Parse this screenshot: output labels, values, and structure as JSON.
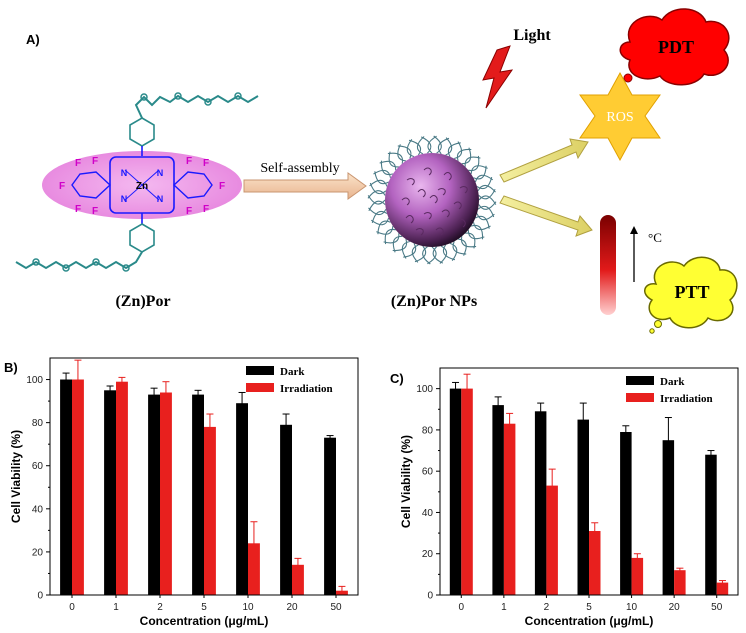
{
  "scheme": {
    "panel_label": "A)",
    "light_label": "Light",
    "arrow_label": "Self-assembly",
    "molecule_label": "(Zn)Por",
    "nanoparticle_label": "(Zn)Por NPs",
    "pdt_label": "PDT",
    "ros_label": "ROS",
    "ptt_label": "PTT",
    "temp_label": "°C",
    "core_atoms": {
      "metal": "Zn",
      "nitrogen": "N",
      "fluorine": "F"
    },
    "colors": {
      "halo": "#e88be0",
      "fluorine": "#d000c8",
      "porphyrin": "#1a1aff",
      "chain": "#2a8a8a",
      "pdt": "#ff0000",
      "ros": "#ffcc33",
      "ptt": "#ffff33",
      "light": "#e31b1b"
    }
  },
  "chart_data": [
    {
      "panel": "B)",
      "type": "bar",
      "categories": [
        "0",
        "1",
        "2",
        "5",
        "10",
        "20",
        "50"
      ],
      "xlabel": "Concentration (μg/mL)",
      "ylabel": "Cell Viability (%)",
      "ylim": [
        0,
        110
      ],
      "yticks": [
        "0",
        "20",
        "40",
        "60",
        "80",
        "100"
      ],
      "legend_position": "top-right",
      "series": [
        {
          "name": "Dark",
          "color": "#000000",
          "values": [
            100,
            95,
            93,
            93,
            89,
            79,
            73
          ],
          "errors": [
            3,
            2,
            3,
            2,
            5,
            5,
            1
          ]
        },
        {
          "name": "Irradiation",
          "color": "#e8201e",
          "values": [
            100,
            99,
            94,
            78,
            24,
            14,
            2
          ],
          "errors": [
            9,
            2,
            5,
            6,
            10,
            3,
            2
          ]
        }
      ]
    },
    {
      "panel": "C)",
      "type": "bar",
      "categories": [
        "0",
        "1",
        "2",
        "5",
        "10",
        "20",
        "50"
      ],
      "xlabel": "Concentration (μg/mL)",
      "ylabel": "Cell Viability (%)",
      "ylim": [
        0,
        110
      ],
      "yticks": [
        "0",
        "20",
        "40",
        "60",
        "80",
        "100"
      ],
      "legend_position": "top-right",
      "series": [
        {
          "name": "Dark",
          "color": "#000000",
          "values": [
            100,
            92,
            89,
            85,
            79,
            75,
            68
          ],
          "errors": [
            3,
            4,
            4,
            8,
            3,
            11,
            2
          ]
        },
        {
          "name": "Irradiation",
          "color": "#e8201e",
          "values": [
            100,
            83,
            53,
            31,
            18,
            12,
            6
          ],
          "errors": [
            7,
            5,
            8,
            4,
            2,
            1,
            1
          ]
        }
      ]
    }
  ]
}
